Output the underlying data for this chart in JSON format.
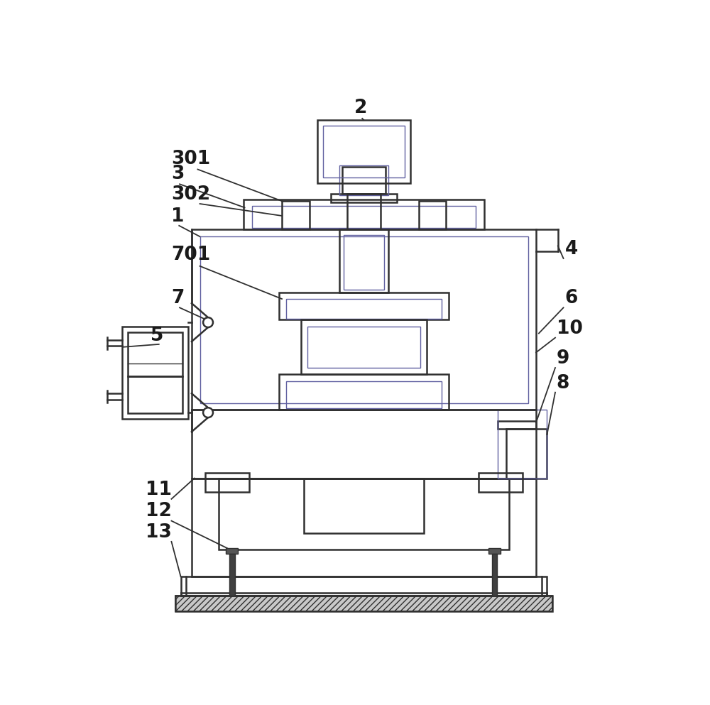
{
  "fig_width": 10.0,
  "fig_height": 9.93,
  "bg_color": "#ffffff",
  "lc": "#303030",
  "lc2": "#6060a0",
  "lw": 1.8,
  "lw2": 1.0
}
